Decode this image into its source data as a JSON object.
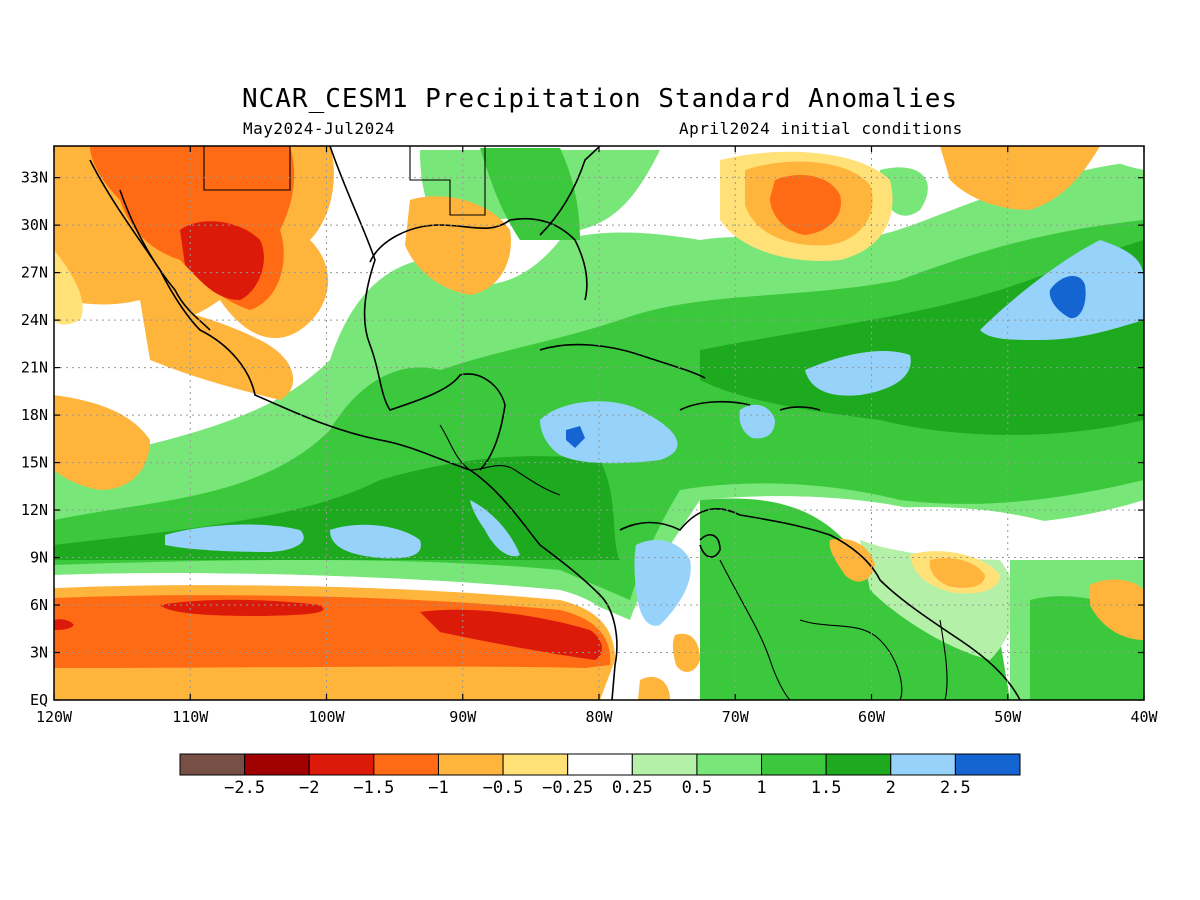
{
  "title": "NCAR_CESM1 Precipitation Standard Anomalies",
  "period": "May2024-Jul2024",
  "initial_conditions": "April2024 initial conditions",
  "map": {
    "lon_range": [
      -120,
      -40
    ],
    "lat_range": [
      0,
      35
    ],
    "lat_ticks": [
      "33N",
      "30N",
      "27N",
      "24N",
      "21N",
      "18N",
      "15N",
      "12N",
      "9N",
      "6N",
      "3N",
      "EQ"
    ],
    "lon_ticks": [
      "120W",
      "110W",
      "100W",
      "90W",
      "80W",
      "70W",
      "60W",
      "50W",
      "40W"
    ],
    "grid": "dotted"
  },
  "colorbar": {
    "labels": [
      "-2.5",
      "-2",
      "-1.5",
      "-1",
      "-0.5",
      "-0.25",
      "0.25",
      "0.5",
      "1",
      "1.5",
      "2",
      "2.5"
    ],
    "colors": [
      "#774f44",
      "#a00000",
      "#dc1a0a",
      "#ff6a14",
      "#ffb43c",
      "#ffe178",
      "#ffffff",
      "#b4f0a8",
      "#78e678",
      "#3cc83c",
      "#1eaa1e",
      "#96d2fa",
      "#1464d2"
    ]
  }
}
